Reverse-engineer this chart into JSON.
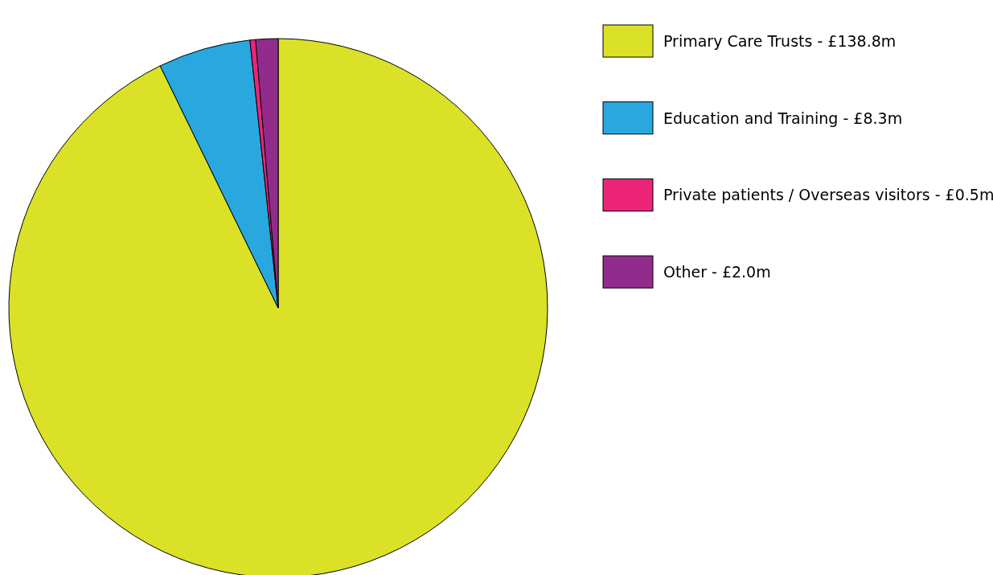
{
  "chart_data": {
    "type": "pie",
    "categories": [
      "Primary Care Trusts -",
      "Education and Training -",
      "Private patients / Overseas visitors -",
      "Other -"
    ],
    "values": [
      138.8,
      8.3,
      0.5,
      2.0
    ],
    "value_labels": [
      "£138.8m",
      "£8.3m",
      "£0.5m",
      "£2.0m"
    ],
    "colors": [
      "#dbe126",
      "#29a8e0",
      "#ec2579",
      "#912c8c"
    ],
    "legend": "top right"
  }
}
